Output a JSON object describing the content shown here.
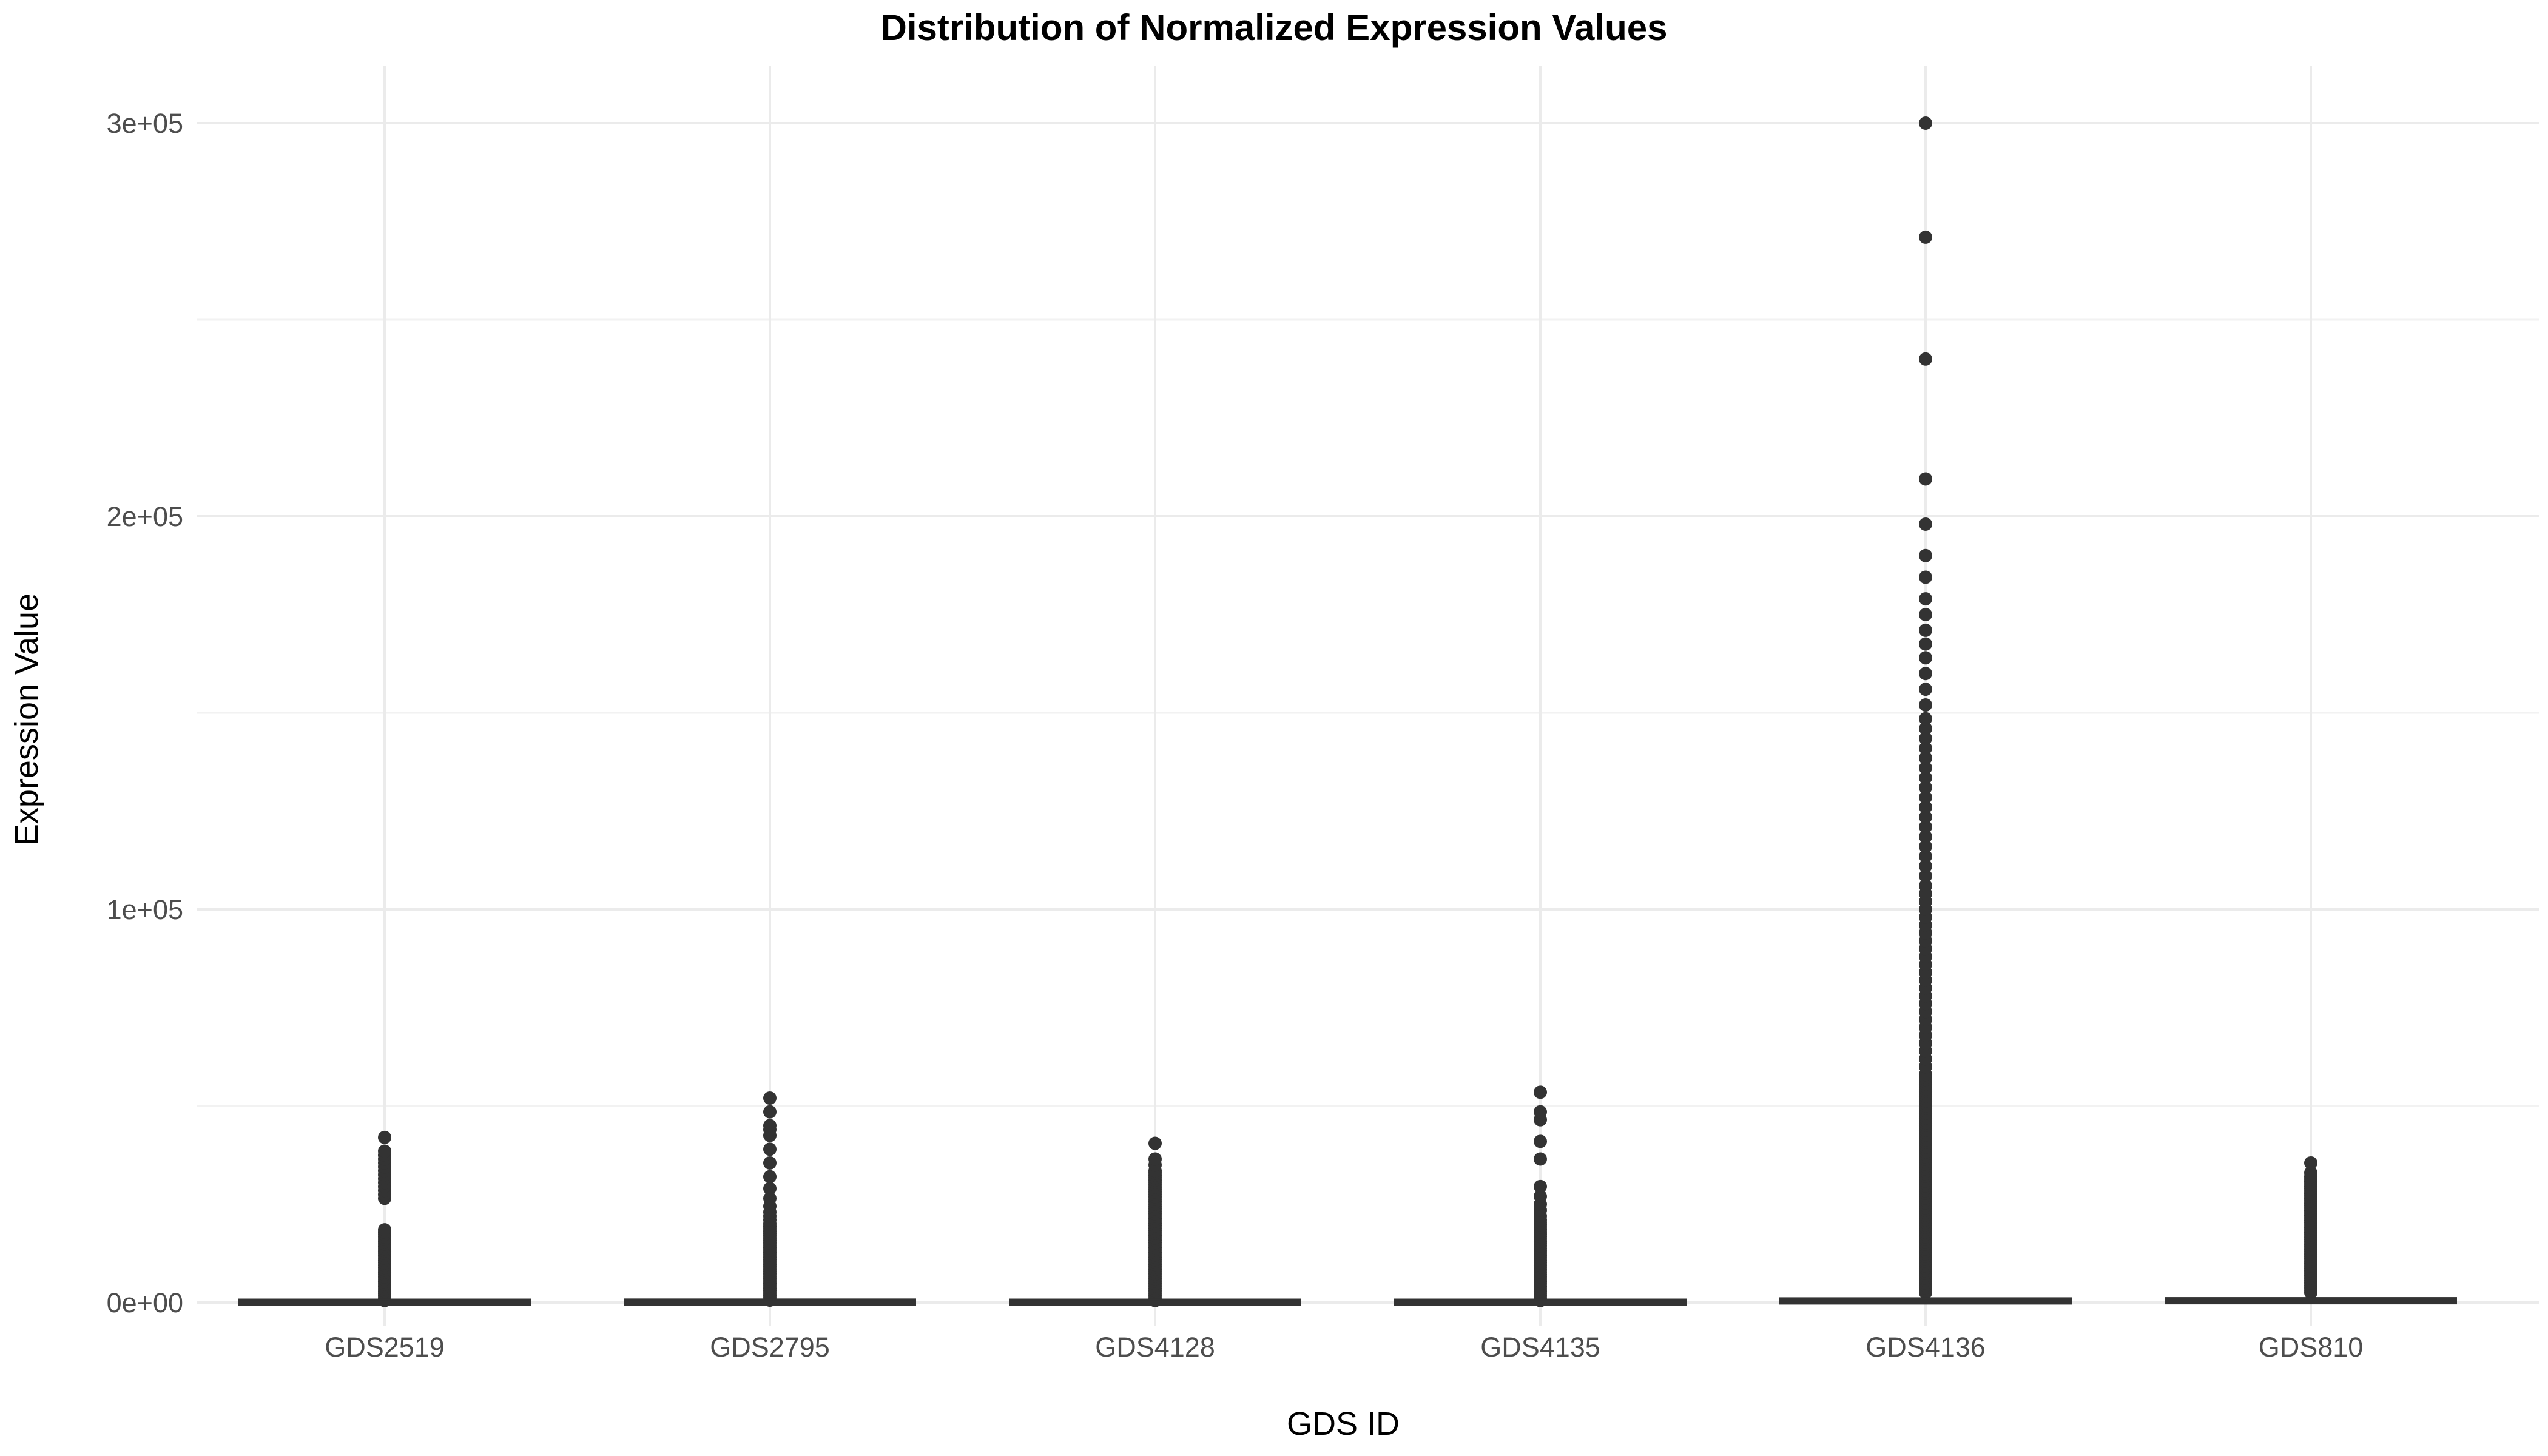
{
  "chart_data": {
    "type": "box",
    "title": "Distribution of Normalized Expression Values",
    "xlabel": "GDS ID",
    "ylabel": "Expression Value",
    "ylim": [
      -15000,
      315000
    ],
    "y_ticks": [
      0,
      100000,
      200000,
      300000
    ],
    "y_tick_labels": [
      "0e+00",
      "1e+05",
      "2e+05",
      "3e+05"
    ],
    "categories": [
      "GDS2519",
      "GDS2795",
      "GDS4128",
      "GDS4135",
      "GDS4136",
      "GDS810"
    ],
    "grid": true,
    "boxes": [
      {
        "category": "GDS2519",
        "q1": 0,
        "median": 50,
        "q3": 150,
        "whisker_low": 0,
        "whisker_high": 400,
        "outlier_range": [
          500,
          18500
        ],
        "outliers_high": [
          26500,
          27500,
          28500,
          29500,
          30500,
          31500,
          32500,
          33500,
          34500,
          35500,
          36500,
          37500,
          38500,
          42000
        ]
      },
      {
        "category": "GDS2795",
        "q1": 0,
        "median": 50,
        "q3": 200,
        "whisker_low": 0,
        "whisker_high": 500,
        "outlier_range": [
          600,
          20000
        ],
        "outliers_high": [
          21000,
          22000,
          23000,
          24500,
          26500,
          29000,
          32000,
          35500,
          39000,
          42500,
          44000,
          45000,
          48500,
          52000
        ]
      },
      {
        "category": "GDS4128",
        "q1": 0,
        "median": 50,
        "q3": 150,
        "whisker_low": 0,
        "whisker_high": 400,
        "outlier_range": [
          500,
          33000
        ],
        "outliers_high": [
          33500,
          35000,
          36500,
          40500
        ]
      },
      {
        "category": "GDS4135",
        "q1": 0,
        "median": 50,
        "q3": 150,
        "whisker_low": 0,
        "whisker_high": 400,
        "outlier_range": [
          500,
          21000
        ],
        "outliers_high": [
          22000,
          23500,
          25000,
          27000,
          29500,
          36500,
          41000,
          46500,
          48500,
          53500
        ]
      },
      {
        "category": "GDS4136",
        "q1": 0,
        "median": 200,
        "q3": 800,
        "whisker_low": 0,
        "whisker_high": 2000,
        "outlier_range": [
          2500,
          58000
        ],
        "outliers_high": [
          60000,
          62000,
          64000,
          66000,
          68000,
          70000,
          72000,
          74000,
          76000,
          78000,
          80000,
          82000,
          84000,
          86000,
          88000,
          90000,
          92000,
          94000,
          96000,
          98000,
          100000,
          102000,
          104000,
          106000,
          108500,
          111000,
          113500,
          116000,
          118500,
          121000,
          123500,
          126000,
          128500,
          131000,
          133500,
          136000,
          138500,
          141000,
          143500,
          146000,
          148500,
          152000,
          156000,
          160000,
          164000,
          167500,
          171000,
          175000,
          179000,
          184500,
          190000,
          198000,
          209500,
          240000,
          271000,
          300000
        ]
      },
      {
        "category": "GDS810",
        "q1": 0,
        "median": 300,
        "q3": 900,
        "whisker_low": 0,
        "whisker_high": 2000,
        "outlier_range": [
          2500,
          32000
        ],
        "outliers_high": [
          33000,
          35500
        ]
      }
    ]
  }
}
